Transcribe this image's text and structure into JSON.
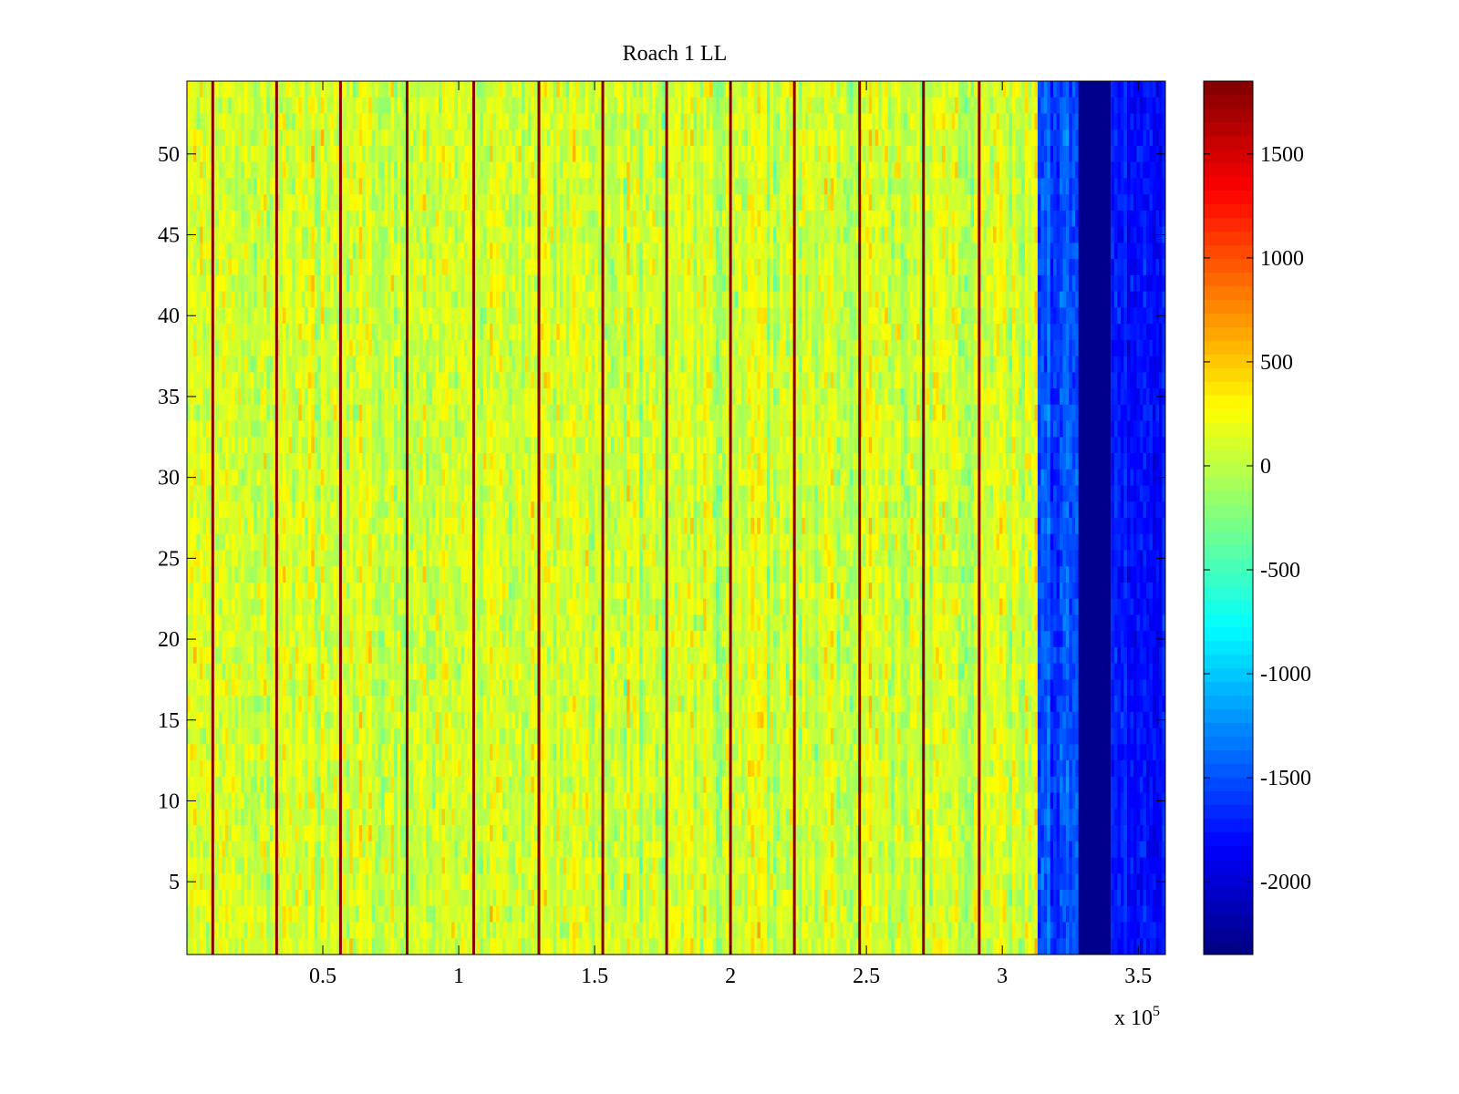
{
  "chart_data": {
    "type": "heatmap",
    "title": "Roach 1 LL",
    "xlabel": "",
    "ylabel": "",
    "x_exponent_label": "x 10",
    "x_exponent_power": "5",
    "xlim": [
      0,
      3.6
    ],
    "ylim": [
      0.5,
      54.5
    ],
    "x_ticks": [
      0.5,
      1,
      1.5,
      2,
      2.5,
      3,
      3.5
    ],
    "x_tick_labels": [
      "0.5",
      "1",
      "1.5",
      "2",
      "2.5",
      "3",
      "3.5"
    ],
    "y_ticks": [
      5,
      10,
      15,
      20,
      25,
      30,
      35,
      40,
      45,
      50
    ],
    "y_tick_labels": [
      "5",
      "10",
      "15",
      "20",
      "25",
      "30",
      "35",
      "40",
      "45",
      "50"
    ],
    "rows": 54,
    "colormap": "jet",
    "colorbar": {
      "range": [
        -2350,
        1850
      ],
      "ticks": [
        -2000,
        -1500,
        -1000,
        -500,
        0,
        500,
        1000,
        1500
      ],
      "tick_labels": [
        "-2000",
        "-1500",
        "-1000",
        "-500",
        "0",
        "500",
        "1000",
        "1500"
      ]
    },
    "bright_line_positions": [
      0.095,
      0.33,
      0.565,
      0.81,
      1.055,
      1.295,
      1.53,
      1.765,
      2.0,
      2.235,
      2.475,
      2.71,
      2.915
    ],
    "regions": [
      {
        "x_range": [
          0,
          3.13
        ],
        "mean_value": 100,
        "noise": 300,
        "description": "noisy baseline"
      },
      {
        "x_range": [
          3.13,
          3.28
        ],
        "mean_value": -1500,
        "noise": 250,
        "description": "blue noisy band"
      },
      {
        "x_range": [
          3.28,
          3.4
        ],
        "mean_value": -2300,
        "noise": 0,
        "description": "dark blue band"
      },
      {
        "x_range": [
          3.4,
          3.6
        ],
        "mean_value": -1750,
        "noise": 200,
        "description": "blue noisy band"
      }
    ]
  }
}
